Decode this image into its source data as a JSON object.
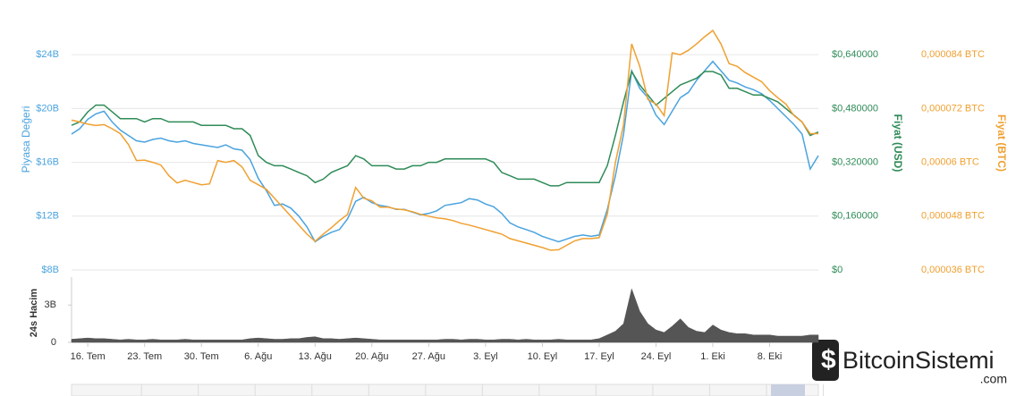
{
  "chart_data": [
    {
      "type": "line",
      "series": [
        {
          "name": "Piyasa Değeri",
          "color": "#4aa3df",
          "axis": "y",
          "values": [
            18.1,
            18.5,
            19.2,
            19.6,
            19.8,
            19.0,
            18.4,
            18.0,
            17.6,
            17.5,
            17.7,
            17.8,
            17.6,
            17.5,
            17.6,
            17.4,
            17.3,
            17.2,
            17.1,
            17.3,
            17.0,
            16.9,
            16.2,
            14.8,
            13.9,
            12.8,
            12.9,
            12.6,
            12.0,
            11.2,
            10.1,
            10.5,
            10.8,
            11.0,
            11.8,
            13.1,
            13.4,
            13.0,
            12.8,
            12.7,
            12.5,
            12.5,
            12.3,
            12.1,
            12.2,
            12.4,
            12.8,
            12.9,
            13.0,
            13.3,
            13.2,
            12.9,
            12.7,
            12.2,
            11.5,
            11.2,
            11.0,
            10.8,
            10.5,
            10.3,
            10.1,
            10.3,
            10.5,
            10.6,
            10.5,
            10.6,
            12.5,
            15.0,
            18.1,
            22.8,
            21.5,
            20.8,
            19.5,
            18.8,
            19.8,
            20.8,
            21.2,
            22.1,
            22.8,
            23.5,
            22.8,
            22.1,
            21.9,
            21.6,
            21.4,
            21.1,
            20.6,
            20.0,
            19.4,
            18.8,
            18.1,
            15.5,
            16.5
          ]
        },
        {
          "name": "Fiyat (USD)",
          "color": "#2e8b57",
          "axis": "y2",
          "values": [
            0.43,
            0.44,
            0.47,
            0.49,
            0.49,
            0.47,
            0.45,
            0.45,
            0.45,
            0.44,
            0.45,
            0.45,
            0.44,
            0.44,
            0.44,
            0.44,
            0.43,
            0.43,
            0.43,
            0.43,
            0.42,
            0.42,
            0.4,
            0.34,
            0.32,
            0.31,
            0.31,
            0.3,
            0.29,
            0.28,
            0.26,
            0.27,
            0.29,
            0.3,
            0.31,
            0.34,
            0.33,
            0.31,
            0.31,
            0.31,
            0.3,
            0.3,
            0.31,
            0.31,
            0.32,
            0.32,
            0.33,
            0.33,
            0.33,
            0.33,
            0.33,
            0.33,
            0.32,
            0.29,
            0.28,
            0.27,
            0.27,
            0.27,
            0.26,
            0.25,
            0.25,
            0.26,
            0.26,
            0.26,
            0.26,
            0.26,
            0.31,
            0.4,
            0.5,
            0.59,
            0.55,
            0.52,
            0.49,
            0.51,
            0.53,
            0.55,
            0.56,
            0.57,
            0.59,
            0.59,
            0.58,
            0.54,
            0.54,
            0.53,
            0.52,
            0.52,
            0.51,
            0.5,
            0.48,
            0.46,
            0.44,
            0.4,
            0.41
          ]
        },
        {
          "name": "Fiyat (BTC)",
          "color": "#f0a030",
          "axis": "y3",
          "values": [
            6.94e-05,
            6.9e-05,
            6.85e-05,
            6.82e-05,
            6.84e-05,
            6.75e-05,
            6.64e-05,
            6.4e-05,
            6.04e-05,
            6.05e-05,
            6e-05,
            5.94e-05,
            5.7e-05,
            5.54e-05,
            5.6e-05,
            5.55e-05,
            5.5e-05,
            5.52e-05,
            6.04e-05,
            6e-05,
            6.04e-05,
            5.9e-05,
            5.6e-05,
            5.5e-05,
            5.4e-05,
            5.2e-05,
            5e-05,
            4.8e-05,
            4.6e-05,
            4.4e-05,
            4.24e-05,
            4.4e-05,
            4.54e-05,
            4.7e-05,
            4.84e-05,
            5.44e-05,
            5.2e-05,
            5.14e-05,
            5e-05,
            5e-05,
            4.96e-05,
            4.94e-05,
            4.9e-05,
            4.84e-05,
            4.8e-05,
            4.76e-05,
            4.74e-05,
            4.7e-05,
            4.64e-05,
            4.6e-05,
            4.55e-05,
            4.5e-05,
            4.45e-05,
            4.4e-05,
            4.3e-05,
            4.25e-05,
            4.2e-05,
            4.15e-05,
            4.1e-05,
            4.04e-05,
            4.05e-05,
            4.15e-05,
            4.25e-05,
            4.3e-05,
            4.3e-05,
            4.32e-05,
            4.84e-05,
            6e-05,
            6.84e-05,
            8.64e-05,
            8.14e-05,
            7.4e-05,
            7.3e-05,
            7.04e-05,
            8.44e-05,
            8.4e-05,
            8.5e-05,
            8.64e-05,
            8.8e-05,
            8.94e-05,
            8.64e-05,
            8.2e-05,
            8.14e-05,
            8e-05,
            7.9e-05,
            7.8e-05,
            7.6e-05,
            7.44e-05,
            7.3e-05,
            7.04e-05,
            6.9e-05,
            6.64e-05,
            6.64e-05
          ]
        }
      ],
      "ylim": [
        8,
        27.4
      ],
      "yticks": [
        {
          "value": 8,
          "label": "$8B"
        },
        {
          "value": 12,
          "label": "$12B"
        },
        {
          "value": 16,
          "label": "$16B"
        },
        {
          "value": 20,
          "label": "$20B"
        },
        {
          "value": 24,
          "label": "$24B"
        }
      ],
      "y2lim": [
        0,
        0.776
      ],
      "y2ticks": [
        {
          "value": 0,
          "label": "$0"
        },
        {
          "value": 0.16,
          "label": "$0,160000"
        },
        {
          "value": 0.32,
          "label": "$0,320000"
        },
        {
          "value": 0.48,
          "label": "$0,480000"
        },
        {
          "value": 0.64,
          "label": "$0,640000"
        }
      ],
      "y3lim": [
        3.6e-05,
        9.42e-05
      ],
      "y3ticks": [
        {
          "value": 3.6e-05,
          "label": "0,000036 BTC"
        },
        {
          "value": 4.8e-05,
          "label": "0,000048 BTC"
        },
        {
          "value": 6e-05,
          "label": "0,00006 BTC"
        },
        {
          "value": 7.2e-05,
          "label": "0,000072 BTC"
        },
        {
          "value": 8.4e-05,
          "label": "0,000084 BTC"
        }
      ],
      "grid": true
    },
    {
      "type": "area",
      "ylabel": "24s Hacim",
      "color": "#555555",
      "categories": [
        null,
        null,
        "16. Tem",
        null,
        null,
        null,
        null,
        null,
        null,
        "23. Tem",
        null,
        null,
        null,
        null,
        null,
        null,
        "30. Tem",
        null,
        null,
        null,
        null,
        null,
        null,
        "6. Ağu",
        null,
        null,
        null,
        null,
        null,
        null,
        "13. Ağu",
        null,
        null,
        null,
        null,
        null,
        null,
        "20. Ağu",
        null,
        null,
        null,
        null,
        null,
        null,
        "27. Ağu",
        null,
        null,
        null,
        null,
        null,
        null,
        "3. Eyl",
        null,
        null,
        null,
        null,
        null,
        null,
        "10. Eyl",
        null,
        null,
        null,
        null,
        null,
        null,
        "17. Eyl",
        null,
        null,
        null,
        null,
        null,
        null,
        "24. Eyl",
        null,
        null,
        null,
        null,
        null,
        null,
        "1. Eki",
        null,
        null,
        null,
        null,
        null,
        null,
        "8. Eki",
        null,
        null,
        null,
        null,
        null,
        null
      ],
      "values": [
        0.25,
        0.3,
        0.35,
        0.3,
        0.3,
        0.25,
        0.2,
        0.25,
        0.2,
        0.2,
        0.25,
        0.2,
        0.2,
        0.2,
        0.25,
        0.2,
        0.2,
        0.2,
        0.2,
        0.2,
        0.2,
        0.2,
        0.3,
        0.35,
        0.3,
        0.25,
        0.25,
        0.3,
        0.3,
        0.4,
        0.45,
        0.3,
        0.3,
        0.25,
        0.3,
        0.35,
        0.3,
        0.25,
        0.2,
        0.2,
        0.2,
        0.2,
        0.2,
        0.2,
        0.2,
        0.2,
        0.25,
        0.25,
        0.2,
        0.25,
        0.25,
        0.2,
        0.2,
        0.25,
        0.25,
        0.2,
        0.25,
        0.2,
        0.2,
        0.2,
        0.25,
        0.2,
        0.2,
        0.2,
        0.2,
        0.3,
        0.6,
        0.9,
        1.5,
        4.3,
        2.5,
        1.5,
        1.0,
        0.8,
        1.3,
        1.9,
        1.2,
        0.9,
        0.8,
        1.4,
        1.0,
        0.8,
        0.7,
        0.7,
        0.6,
        0.6,
        0.6,
        0.5,
        0.5,
        0.5,
        0.5,
        0.6,
        0.6
      ],
      "ylim": [
        0,
        5.25
      ],
      "yticks": [
        0,
        {
          "value": 3,
          "label": "3B"
        }
      ]
    }
  ],
  "watermark": {
    "text": "BitcoinSistemi",
    "suffix": ".com"
  }
}
